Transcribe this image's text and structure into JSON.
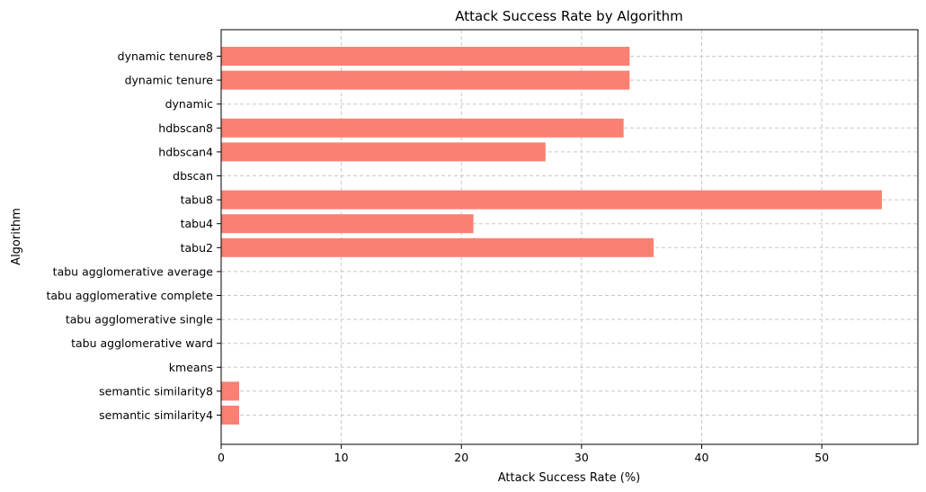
{
  "chart_data": {
    "type": "bar",
    "orientation": "horizontal",
    "title": "Attack Success Rate by Algorithm",
    "xlabel": "Attack Success Rate (%)",
    "ylabel": "Algorithm",
    "xlim": [
      0,
      58
    ],
    "xticks": [
      0,
      10,
      20,
      30,
      40,
      50
    ],
    "grid": true,
    "bar_color": "#fa8072",
    "grid_color": "#c8c8c8",
    "categories": [
      "semantic similarity4",
      "semantic similarity8",
      "kmeans",
      "tabu agglomerative ward",
      "tabu agglomerative single",
      "tabu agglomerative complete",
      "tabu agglomerative average",
      "tabu2",
      "tabu4",
      "tabu8",
      "dbscan",
      "hdbscan4",
      "hdbscan8",
      "dynamic",
      "dynamic tenure",
      "dynamic tenure8"
    ],
    "values": [
      1.5,
      1.5,
      0,
      0,
      0,
      0,
      0,
      36,
      21,
      55,
      0,
      27,
      33.5,
      0,
      34,
      34
    ]
  }
}
